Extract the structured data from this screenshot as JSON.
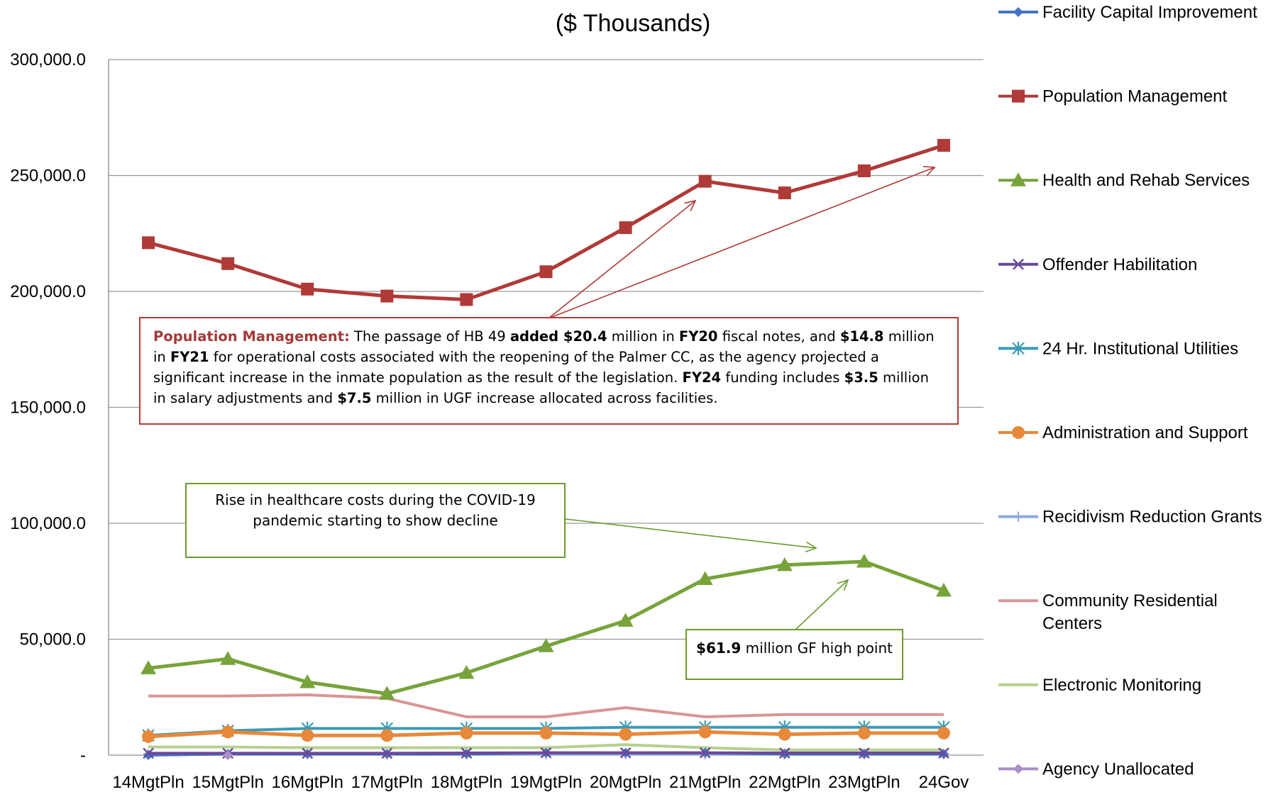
{
  "chart_data": {
    "type": "line",
    "title": "($ Thousands)",
    "categories": [
      "14MgtPln",
      "15MgtPln",
      "16MgtPln",
      "17MgtPln",
      "18MgtPln",
      "19MgtPln",
      "20MgtPln",
      "21MgtPln",
      "22MgtPln",
      "23MgtPln",
      "24Gov"
    ],
    "ylim": [
      0,
      300000
    ],
    "yticks": [
      "-",
      "50,000.0",
      "100,000.0",
      "150,000.0",
      "200,000.0",
      "250,000.0",
      "300,000.0"
    ],
    "grid": "horizontal",
    "legend_position": "right",
    "series": [
      {
        "name": "Facility Capital Improvement",
        "color": "#4472c4",
        "marker": "diamond",
        "values": [
          0,
          500,
          500,
          500,
          500,
          1000,
          1000,
          1000,
          500,
          500,
          500
        ]
      },
      {
        "name": "Population Management",
        "color": "#b03a37",
        "marker": "square",
        "values": [
          221000,
          212000,
          201000,
          198000,
          196500,
          208500,
          227500,
          247500,
          242500,
          252000,
          263000
        ]
      },
      {
        "name": "Health and Rehab Services",
        "color": "#77a33a",
        "marker": "triangle",
        "values": [
          37500,
          41500,
          31500,
          26500,
          35500,
          47000,
          58000,
          76000,
          82000,
          83500,
          71000
        ]
      },
      {
        "name": "Offender Habilitation",
        "color": "#6a4a9a",
        "marker": "x",
        "values": [
          800,
          800,
          800,
          800,
          900,
          1000,
          1000,
          1000,
          900,
          900,
          900
        ]
      },
      {
        "name": "24 Hr. Institutional Utilities",
        "color": "#3b9bb5",
        "marker": "star",
        "values": [
          8500,
          10500,
          11500,
          11500,
          11500,
          11500,
          12000,
          12000,
          12000,
          12000,
          12000
        ]
      },
      {
        "name": "Administration and Support",
        "color": "#e8883a",
        "marker": "circle",
        "values": [
          8000,
          10000,
          8500,
          8500,
          9500,
          9500,
          9000,
          10000,
          9000,
          9500,
          9500
        ]
      },
      {
        "name": "Recidivism Reduction Grants",
        "color": "#8eaadb",
        "marker": "plus",
        "values": [
          400,
          400,
          400,
          400,
          400,
          400,
          400,
          400,
          400,
          400,
          400
        ]
      },
      {
        "name": "Community Residential Centers",
        "color": "#d99594",
        "marker": "none",
        "values": [
          25500,
          25500,
          26000,
          24500,
          16500,
          16500,
          20500,
          16500,
          17500,
          17500,
          17500
        ]
      },
      {
        "name": "Electronic Monitoring",
        "color": "#b5d18f",
        "marker": "none",
        "values": [
          3500,
          3500,
          3200,
          3200,
          3200,
          3200,
          4500,
          3200,
          2200,
          2200,
          2200
        ]
      },
      {
        "name": "Agency Unallocated",
        "color": "#a98fc9",
        "marker": "diamond",
        "values": [
          null,
          0,
          null,
          null,
          null,
          null,
          null,
          null,
          null,
          null,
          null
        ]
      }
    ],
    "annotations": {
      "population_management": {
        "label": "Population Management:",
        "p1": " The passage of HB 49 ",
        "b1": "added $20.4",
        "p2": " million in ",
        "b2": "FY20",
        "p3": " fiscal notes, and ",
        "b3": "$14.8",
        "p4": " million in ",
        "b4": "FY21",
        "p5": " for operational costs associated with the reopening of the Palmer CC, as the agency projected a significant increase in the inmate population as the result of the legislation. ",
        "b5": "FY24",
        "p6": " funding includes ",
        "b6": "$3.5",
        "p7": " million in salary adjustments and ",
        "b7": "$7.5",
        "p8": " million in UGF increase allocated across facilities."
      },
      "healthcare": "Rise in healthcare costs during the COVID-19 pandemic starting to show decline",
      "high_point_bold": "$61.9",
      "high_point_rest": " million GF high point"
    }
  }
}
